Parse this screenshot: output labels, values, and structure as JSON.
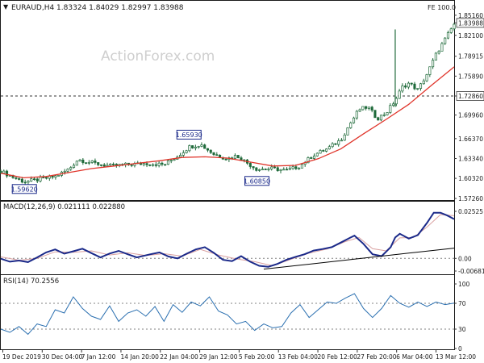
{
  "header": {
    "symbol_line": "EURAUD,H4  1.83324 1.84029 1.82997 1.83988",
    "indicator_tag": "FE 100.0",
    "watermark": "ActionForex.com"
  },
  "chart_data": [
    {
      "type": "candlestick",
      "panel": "price",
      "y_ticks": [
        "1.85160",
        "1.82100",
        "1.78915",
        "1.75890",
        "1.72860",
        "1.69960",
        "1.66370",
        "1.63340",
        "1.60320",
        "1.57260"
      ],
      "ylim": [
        1.5726,
        1.8576
      ],
      "current_price_label": "1.83988",
      "level_line": {
        "value": 1.7286,
        "label": "1.72860"
      },
      "annotations": [
        {
          "label": "1.59620",
          "x": 0.052,
          "value": 1.5962
        },
        {
          "label": "1.65930",
          "x": 0.415,
          "value": 1.6593
        },
        {
          "label": "1.60850",
          "x": 0.565,
          "value": 1.6085
        }
      ],
      "spike": {
        "x": 0.87,
        "value": 1.83
      },
      "close_path": [
        [
          0.0,
          1.614
        ],
        [
          0.03,
          1.604
        ],
        [
          0.052,
          1.598
        ],
        [
          0.08,
          1.601
        ],
        [
          0.12,
          1.606
        ],
        [
          0.15,
          1.617
        ],
        [
          0.17,
          1.632
        ],
        [
          0.2,
          1.627
        ],
        [
          0.24,
          1.622
        ],
        [
          0.28,
          1.624
        ],
        [
          0.32,
          1.626
        ],
        [
          0.36,
          1.624
        ],
        [
          0.39,
          1.637
        ],
        [
          0.415,
          1.651
        ],
        [
          0.44,
          1.655
        ],
        [
          0.47,
          1.64
        ],
        [
          0.5,
          1.633
        ],
        [
          0.52,
          1.638
        ],
        [
          0.545,
          1.626
        ],
        [
          0.565,
          1.617
        ],
        [
          0.6,
          1.618
        ],
        [
          0.63,
          1.615
        ],
        [
          0.66,
          1.622
        ],
        [
          0.69,
          1.639
        ],
        [
          0.72,
          1.648
        ],
        [
          0.75,
          1.662
        ],
        [
          0.77,
          1.686
        ],
        [
          0.79,
          1.708
        ],
        [
          0.81,
          1.712
        ],
        [
          0.83,
          1.694
        ],
        [
          0.85,
          1.703
        ],
        [
          0.87,
          1.722
        ],
        [
          0.885,
          1.742
        ],
        [
          0.9,
          1.748
        ],
        [
          0.92,
          1.738
        ],
        [
          0.94,
          1.762
        ],
        [
          0.96,
          1.792
        ],
        [
          0.98,
          1.815
        ],
        [
          1.0,
          1.838
        ]
      ],
      "sma_path": [
        [
          0.0,
          1.611
        ],
        [
          0.05,
          1.604
        ],
        [
          0.1,
          1.606
        ],
        [
          0.15,
          1.612
        ],
        [
          0.2,
          1.618
        ],
        [
          0.25,
          1.622
        ],
        [
          0.3,
          1.626
        ],
        [
          0.35,
          1.63
        ],
        [
          0.4,
          1.635
        ],
        [
          0.45,
          1.636
        ],
        [
          0.5,
          1.634
        ],
        [
          0.55,
          1.628
        ],
        [
          0.6,
          1.622
        ],
        [
          0.65,
          1.623
        ],
        [
          0.7,
          1.633
        ],
        [
          0.75,
          1.648
        ],
        [
          0.8,
          1.671
        ],
        [
          0.85,
          1.693
        ],
        [
          0.9,
          1.716
        ],
        [
          0.95,
          1.745
        ],
        [
          1.0,
          1.773
        ]
      ]
    },
    {
      "type": "line",
      "panel": "macd",
      "title": "MACD(12,26,9) 0.021111 0.022880",
      "y_ticks": [
        "0.02525",
        "0.00",
        "-0.006813"
      ],
      "ylim": [
        -0.006813,
        0.02525
      ],
      "macd_path": [
        [
          0.0,
          -0.0002
        ],
        [
          0.02,
          -0.0018
        ],
        [
          0.04,
          -0.0012
        ],
        [
          0.06,
          -0.002
        ],
        [
          0.08,
          0.0005
        ],
        [
          0.1,
          0.0032
        ],
        [
          0.12,
          0.0048
        ],
        [
          0.14,
          0.0025
        ],
        [
          0.16,
          0.0038
        ],
        [
          0.18,
          0.0052
        ],
        [
          0.2,
          0.0028
        ],
        [
          0.22,
          0.0005
        ],
        [
          0.24,
          0.0026
        ],
        [
          0.26,
          0.004
        ],
        [
          0.28,
          0.0022
        ],
        [
          0.3,
          0.0005
        ],
        [
          0.33,
          0.0022
        ],
        [
          0.35,
          0.0032
        ],
        [
          0.37,
          0.001
        ],
        [
          0.39,
          0.0
        ],
        [
          0.41,
          0.0025
        ],
        [
          0.43,
          0.0048
        ],
        [
          0.45,
          0.006
        ],
        [
          0.47,
          0.003
        ],
        [
          0.49,
          -0.0008
        ],
        [
          0.51,
          -0.0015
        ],
        [
          0.53,
          0.0012
        ],
        [
          0.55,
          -0.0018
        ],
        [
          0.57,
          -0.004
        ],
        [
          0.59,
          -0.0045
        ],
        [
          0.61,
          -0.003
        ],
        [
          0.63,
          -0.0008
        ],
        [
          0.65,
          0.0008
        ],
        [
          0.67,
          0.0022
        ],
        [
          0.69,
          0.0042
        ],
        [
          0.71,
          0.005
        ],
        [
          0.73,
          0.006
        ],
        [
          0.75,
          0.0085
        ],
        [
          0.77,
          0.011
        ],
        [
          0.78,
          0.0122
        ],
        [
          0.8,
          0.0078
        ],
        [
          0.82,
          0.0022
        ],
        [
          0.84,
          0.0012
        ],
        [
          0.86,
          0.006
        ],
        [
          0.87,
          0.0112
        ],
        [
          0.88,
          0.0132
        ],
        [
          0.9,
          0.0106
        ],
        [
          0.92,
          0.0125
        ],
        [
          0.94,
          0.019
        ],
        [
          0.955,
          0.0245
        ],
        [
          0.97,
          0.0245
        ],
        [
          0.985,
          0.023
        ],
        [
          1.0,
          0.0211
        ]
      ],
      "signal_path": [
        [
          0.0,
          0.0008
        ],
        [
          0.04,
          -0.001
        ],
        [
          0.08,
          0.0
        ],
        [
          0.12,
          0.0035
        ],
        [
          0.16,
          0.0033
        ],
        [
          0.2,
          0.004
        ],
        [
          0.24,
          0.0018
        ],
        [
          0.28,
          0.003
        ],
        [
          0.32,
          0.0015
        ],
        [
          0.36,
          0.0025
        ],
        [
          0.4,
          0.0012
        ],
        [
          0.44,
          0.0048
        ],
        [
          0.48,
          0.0018
        ],
        [
          0.52,
          -0.0003
        ],
        [
          0.56,
          -0.0018
        ],
        [
          0.6,
          -0.004
        ],
        [
          0.64,
          -0.0005
        ],
        [
          0.68,
          0.0028
        ],
        [
          0.72,
          0.005
        ],
        [
          0.76,
          0.009
        ],
        [
          0.79,
          0.0112
        ],
        [
          0.82,
          0.0052
        ],
        [
          0.85,
          0.004
        ],
        [
          0.88,
          0.011
        ],
        [
          0.91,
          0.0112
        ],
        [
          0.94,
          0.0168
        ],
        [
          0.97,
          0.0235
        ],
        [
          1.0,
          0.0229
        ]
      ],
      "trendline": [
        [
          0.58,
          -0.0058
        ],
        [
          1.0,
          0.0055
        ]
      ]
    },
    {
      "type": "line",
      "panel": "rsi",
      "title": "RSI(14) 70.2556",
      "y_ticks": [
        "100",
        "70",
        "30",
        "0"
      ],
      "ylim": [
        0,
        100
      ],
      "rsi_path": [
        [
          0.0,
          30
        ],
        [
          0.02,
          25
        ],
        [
          0.04,
          34
        ],
        [
          0.06,
          22
        ],
        [
          0.08,
          38
        ],
        [
          0.1,
          34
        ],
        [
          0.12,
          60
        ],
        [
          0.14,
          55
        ],
        [
          0.16,
          80
        ],
        [
          0.18,
          62
        ],
        [
          0.2,
          50
        ],
        [
          0.22,
          45
        ],
        [
          0.24,
          66
        ],
        [
          0.26,
          42
        ],
        [
          0.28,
          55
        ],
        [
          0.3,
          60
        ],
        [
          0.32,
          50
        ],
        [
          0.34,
          65
        ],
        [
          0.36,
          42
        ],
        [
          0.38,
          68
        ],
        [
          0.4,
          56
        ],
        [
          0.42,
          72
        ],
        [
          0.44,
          66
        ],
        [
          0.46,
          80
        ],
        [
          0.48,
          58
        ],
        [
          0.5,
          52
        ],
        [
          0.52,
          38
        ],
        [
          0.54,
          42
        ],
        [
          0.56,
          28
        ],
        [
          0.58,
          38
        ],
        [
          0.6,
          32
        ],
        [
          0.62,
          34
        ],
        [
          0.64,
          55
        ],
        [
          0.66,
          68
        ],
        [
          0.68,
          48
        ],
        [
          0.7,
          60
        ],
        [
          0.72,
          72
        ],
        [
          0.74,
          70
        ],
        [
          0.76,
          78
        ],
        [
          0.78,
          85
        ],
        [
          0.8,
          62
        ],
        [
          0.82,
          48
        ],
        [
          0.84,
          62
        ],
        [
          0.86,
          82
        ],
        [
          0.88,
          70
        ],
        [
          0.9,
          64
        ],
        [
          0.92,
          72
        ],
        [
          0.94,
          65
        ],
        [
          0.96,
          72
        ],
        [
          0.98,
          68
        ],
        [
          1.0,
          70.3
        ]
      ]
    }
  ],
  "x_labels": [
    "19 Dec 2019",
    "30 Dec 04:00",
    "7 Jan 12:00",
    "14 Jan 20:00",
    "22 Jan 04:00",
    "29 Jan 12:00",
    "5 Feb 20:00",
    "13 Feb 04:00",
    "20 Feb 12:00",
    "27 Feb 20:00",
    "6 Mar 04:00",
    "13 Mar 12:00"
  ],
  "colors": {
    "candle": "#1f6a3a",
    "sma": "#e0352b",
    "macd": "#1b2a8a",
    "signal": "#d9a0a0",
    "trendline": "#000000",
    "rsi": "#2a6fb0",
    "grid_dotted": "#808080",
    "label_box_border": "#1b2a8a"
  }
}
